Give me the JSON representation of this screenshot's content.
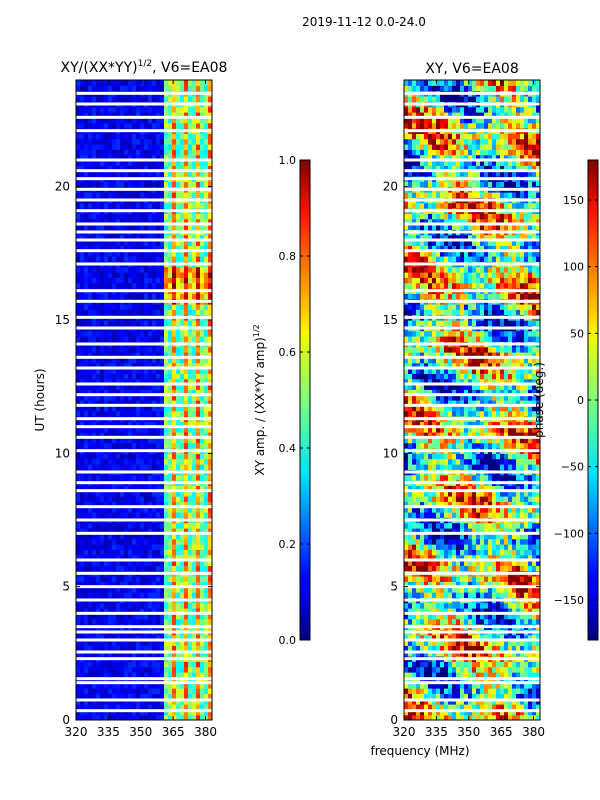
{
  "figure": {
    "suptitle": "2019-11-12 0.0-24.0",
    "xlabel_shared": "frequency (MHz)"
  },
  "chart_data": [
    {
      "type": "heatmap",
      "title_main": "XY/(XX*YY)",
      "title_sup": "1/2",
      "title_tail": ", V6=EA08",
      "xlabel": "frequency (MHz)",
      "ylabel": "UT (hours)",
      "xlim": [
        320,
        383
      ],
      "ylim": [
        0,
        24
      ],
      "xticks": [
        320,
        335,
        350,
        365,
        380
      ],
      "yticks": [
        0,
        5,
        10,
        15,
        20
      ],
      "colormap": "jet",
      "colorbar": {
        "label_main": "XY amp. / (XX*YY amp)",
        "label_sup": "1/2",
        "vmin": 0.0,
        "vmax": 1.0,
        "ticks": [
          "0.0",
          "0.2",
          "0.4",
          "0.6",
          "0.8",
          "1.0"
        ],
        "tick_values": [
          0.0,
          0.2,
          0.4,
          0.6,
          0.8,
          1.0
        ]
      },
      "flagged_ut_hours": [
        0.35,
        0.75,
        1.4,
        1.55,
        2.3,
        2.55,
        3.0,
        3.3,
        3.5,
        4.0,
        4.5,
        5.0,
        5.5,
        6.0,
        7.0,
        7.5,
        8.0,
        8.6,
        8.9,
        9.3,
        10.1,
        10.6,
        11.0,
        11.3,
        11.8,
        12.2,
        12.6,
        13.2,
        13.6,
        14.1,
        14.7,
        15.1,
        15.7,
        16.1,
        17.1,
        17.6,
        18.0,
        18.3,
        18.6,
        19.1,
        19.5,
        19.9,
        20.3,
        20.6,
        21.0,
        22.1,
        22.6,
        23.1,
        23.5
      ],
      "high_amplitude_band_mhz": [
        361,
        383
      ],
      "notes": "amplitude mostly low (~0.1) below 361 MHz, rising to 0.4-0.8 in channels 361-383 MHz"
    },
    {
      "type": "heatmap",
      "title": "XY, V6=EA08",
      "xlabel": "frequency (MHz)",
      "ylabel": "",
      "xlim": [
        320,
        383
      ],
      "ylim": [
        0,
        24
      ],
      "xticks": [
        320,
        335,
        350,
        365,
        380
      ],
      "yticks": [
        0,
        5,
        10,
        15,
        20
      ],
      "colormap": "jet",
      "colorbar": {
        "label": "phase (deg.)",
        "vmin": -180,
        "vmax": 180,
        "ticks": [
          "150",
          "100",
          "50",
          "0",
          "−50",
          "−100",
          "−150"
        ],
        "tick_values": [
          150,
          100,
          50,
          0,
          -50,
          -100,
          -150
        ]
      },
      "flagged_ut_hours": [
        0.35,
        0.75,
        1.4,
        1.55,
        2.3,
        2.55,
        3.0,
        3.3,
        3.5,
        4.0,
        4.5,
        5.0,
        5.5,
        6.0,
        7.0,
        7.5,
        8.0,
        8.6,
        8.9,
        9.3,
        10.1,
        10.6,
        11.0,
        11.3,
        11.8,
        12.2,
        12.6,
        13.2,
        13.6,
        14.1,
        14.7,
        15.1,
        15.7,
        16.1,
        17.1,
        17.6,
        18.0,
        18.3,
        18.6,
        19.1,
        19.5,
        19.9,
        20.3,
        20.6,
        21.0,
        22.1,
        22.6,
        23.1,
        23.5
      ],
      "notes": "phase varies across full -180 to 180 deg range"
    }
  ]
}
